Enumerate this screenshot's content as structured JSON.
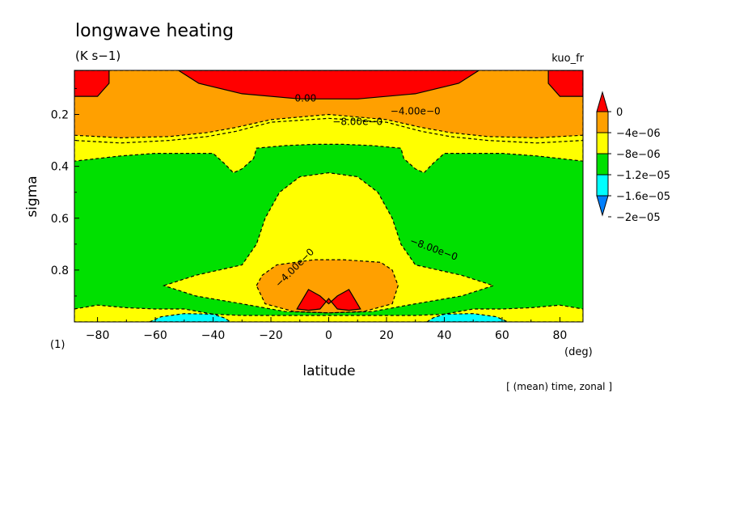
{
  "header": {
    "title": "longwave heating",
    "units": "(K s−1)",
    "experiment": "kuo_fr",
    "footnote": "(1)",
    "averaging": "[ (mean) time, zonal ]"
  },
  "colors": {
    "red": "#ff0000",
    "orange": "#ffa000",
    "yellow": "#ffff00",
    "green": "#00e000",
    "cyan": "#00ffff",
    "blue": "#0080ff"
  },
  "chart_data": {
    "type": "heatmap",
    "subtype": "filled-contour latitude-sigma cross section",
    "title": "longwave heating",
    "xlabel": "latitude",
    "xunit": "(deg)",
    "ylabel": "sigma",
    "xlim": [
      -88,
      88
    ],
    "ylim": [
      1.0,
      0.03
    ],
    "xticks": [
      {
        "value": -80,
        "label": "−80"
      },
      {
        "value": -60,
        "label": "−60"
      },
      {
        "value": -40,
        "label": "−40"
      },
      {
        "value": -20,
        "label": "−20"
      },
      {
        "value": 0,
        "label": "0"
      },
      {
        "value": 20,
        "label": "20"
      },
      {
        "value": 40,
        "label": "40"
      },
      {
        "value": 60,
        "label": "60"
      },
      {
        "value": 80,
        "label": "80"
      }
    ],
    "yticks": [
      {
        "value": 0.2,
        "label": "0.2"
      },
      {
        "value": 0.4,
        "label": "0.4"
      },
      {
        "value": 0.6,
        "label": "0.6"
      },
      {
        "value": 0.8,
        "label": "0.8"
      }
    ],
    "colorbar": [
      {
        "color": "#ff0000",
        "label": "0"
      },
      {
        "color": "#ffa000",
        "label": "−4e−06"
      },
      {
        "color": "#ffff00",
        "label": "−8e−06"
      },
      {
        "color": "#00e000",
        "label": "−1.2e−05"
      },
      {
        "color": "#00ffff",
        "label": "−1.6e−05"
      },
      {
        "color": "#0080ff",
        "label": "−2e−05"
      }
    ],
    "contour_labels": [
      {
        "text": "0.00",
        "lat": -8,
        "sigma": 0.15
      },
      {
        "text": "−4.00e−0",
        "lat": 30,
        "sigma": 0.2
      },
      {
        "text": "−8.00e−0",
        "lat": 10,
        "sigma": 0.24
      },
      {
        "text": "−8.00e−0",
        "lat": 36,
        "sigma": 0.73
      },
      {
        "text": "−4.00e−0",
        "lat": -11,
        "sigma": 0.8
      }
    ],
    "regions": [
      {
        "fill": "orange",
        "points": [
          [
            -88,
            0.03
          ],
          [
            88,
            0.03
          ],
          [
            88,
            0.3
          ],
          [
            72,
            0.31
          ],
          [
            55,
            0.3
          ],
          [
            42,
            0.285
          ],
          [
            32,
            0.265
          ],
          [
            20,
            0.23
          ],
          [
            0,
            0.215
          ],
          [
            -20,
            0.23
          ],
          [
            -32,
            0.265
          ],
          [
            -42,
            0.285
          ],
          [
            -55,
            0.3
          ],
          [
            -72,
            0.31
          ],
          [
            -88,
            0.3
          ]
        ]
      },
      {
        "fill": "yellow",
        "points": [
          [
            -88,
            0.28
          ],
          [
            -72,
            0.29
          ],
          [
            -55,
            0.285
          ],
          [
            -42,
            0.27
          ],
          [
            -32,
            0.25
          ],
          [
            -20,
            0.22
          ],
          [
            0,
            0.2
          ],
          [
            20,
            0.22
          ],
          [
            32,
            0.25
          ],
          [
            42,
            0.27
          ],
          [
            55,
            0.285
          ],
          [
            72,
            0.29
          ],
          [
            88,
            0.28
          ],
          [
            88,
            0.38
          ],
          [
            72,
            0.36
          ],
          [
            60,
            0.35
          ],
          [
            48,
            0.35
          ],
          [
            40,
            0.35
          ],
          [
            36,
            0.39
          ],
          [
            33,
            0.425
          ],
          [
            30,
            0.41
          ],
          [
            26,
            0.37
          ],
          [
            25,
            0.33
          ],
          [
            15,
            0.32
          ],
          [
            5,
            0.315
          ],
          [
            -5,
            0.315
          ],
          [
            -15,
            0.32
          ],
          [
            -25,
            0.33
          ],
          [
            -26,
            0.37
          ],
          [
            -30,
            0.41
          ],
          [
            -33,
            0.425
          ],
          [
            -36,
            0.39
          ],
          [
            -40,
            0.35
          ],
          [
            -48,
            0.35
          ],
          [
            -60,
            0.35
          ],
          [
            -72,
            0.36
          ],
          [
            -88,
            0.38
          ]
        ]
      },
      {
        "fill": "red",
        "points": [
          [
            -88,
            0.03
          ],
          [
            -76,
            0.03
          ],
          [
            -76,
            0.08
          ],
          [
            -80,
            0.13
          ],
          [
            -88,
            0.13
          ]
        ]
      },
      {
        "fill": "red",
        "points": [
          [
            88,
            0.03
          ],
          [
            76,
            0.03
          ],
          [
            76,
            0.08
          ],
          [
            80,
            0.13
          ],
          [
            88,
            0.13
          ]
        ]
      },
      {
        "fill": "red",
        "points": [
          [
            -52,
            0.03
          ],
          [
            52,
            0.03
          ],
          [
            45,
            0.08
          ],
          [
            30,
            0.12
          ],
          [
            10,
            0.14
          ],
          [
            -10,
            0.14
          ],
          [
            -30,
            0.12
          ],
          [
            -45,
            0.08
          ]
        ]
      },
      {
        "fill": "yellow",
        "points": [
          [
            -57,
            0.86
          ],
          [
            -46,
            0.82
          ],
          [
            -30,
            0.78
          ],
          [
            -25,
            0.7
          ],
          [
            -22,
            0.6
          ],
          [
            -17,
            0.5
          ],
          [
            -10,
            0.44
          ],
          [
            0,
            0.425
          ],
          [
            10,
            0.44
          ],
          [
            17,
            0.5
          ],
          [
            22,
            0.6
          ],
          [
            25,
            0.7
          ],
          [
            30,
            0.78
          ],
          [
            46,
            0.82
          ],
          [
            57,
            0.86
          ],
          [
            46,
            0.9
          ],
          [
            30,
            0.93
          ],
          [
            15,
            0.96
          ],
          [
            0,
            0.965
          ],
          [
            -15,
            0.96
          ],
          [
            -30,
            0.93
          ],
          [
            -46,
            0.9
          ]
        ]
      },
      {
        "fill": "orange",
        "points": [
          [
            -25,
            0.86
          ],
          [
            -23,
            0.82
          ],
          [
            -18,
            0.78
          ],
          [
            -5,
            0.76
          ],
          [
            5,
            0.76
          ],
          [
            18,
            0.77
          ],
          [
            22,
            0.8
          ],
          [
            24,
            0.86
          ],
          [
            22,
            0.93
          ],
          [
            12,
            0.96
          ],
          [
            0,
            0.965
          ],
          [
            -12,
            0.96
          ],
          [
            -22,
            0.93
          ]
        ]
      },
      {
        "fill": "red",
        "points": [
          [
            -11,
            0.95
          ],
          [
            -7,
            0.875
          ],
          [
            -3,
            0.9
          ],
          [
            0,
            0.93
          ],
          [
            3,
            0.9
          ],
          [
            7,
            0.875
          ],
          [
            11,
            0.95
          ],
          [
            7,
            0.955
          ],
          [
            3,
            0.95
          ],
          [
            0,
            0.91
          ],
          [
            -3,
            0.95
          ],
          [
            -7,
            0.955
          ]
        ]
      },
      {
        "fill": "yellow",
        "points": [
          [
            -88,
            0.95
          ],
          [
            -80,
            0.935
          ],
          [
            -70,
            0.945
          ],
          [
            -60,
            0.95
          ],
          [
            -50,
            0.95
          ],
          [
            -40,
            0.97
          ],
          [
            -30,
            0.975
          ],
          [
            -20,
            0.975
          ],
          [
            20,
            0.975
          ],
          [
            30,
            0.975
          ],
          [
            40,
            0.97
          ],
          [
            50,
            0.95
          ],
          [
            60,
            0.95
          ],
          [
            70,
            0.945
          ],
          [
            80,
            0.935
          ],
          [
            88,
            0.95
          ],
          [
            88,
            1.0
          ],
          [
            -88,
            1.0
          ]
        ]
      },
      {
        "fill": "cyan",
        "points": [
          [
            -62,
            1.0
          ],
          [
            -58,
            0.98
          ],
          [
            -50,
            0.968
          ],
          [
            -40,
            0.97
          ],
          [
            -36,
            0.985
          ],
          [
            -34,
            1.0
          ]
        ]
      },
      {
        "fill": "cyan",
        "points": [
          [
            34,
            1.0
          ],
          [
            36,
            0.985
          ],
          [
            40,
            0.97
          ],
          [
            50,
            0.968
          ],
          [
            58,
            0.98
          ],
          [
            62,
            1.0
          ]
        ]
      }
    ]
  }
}
